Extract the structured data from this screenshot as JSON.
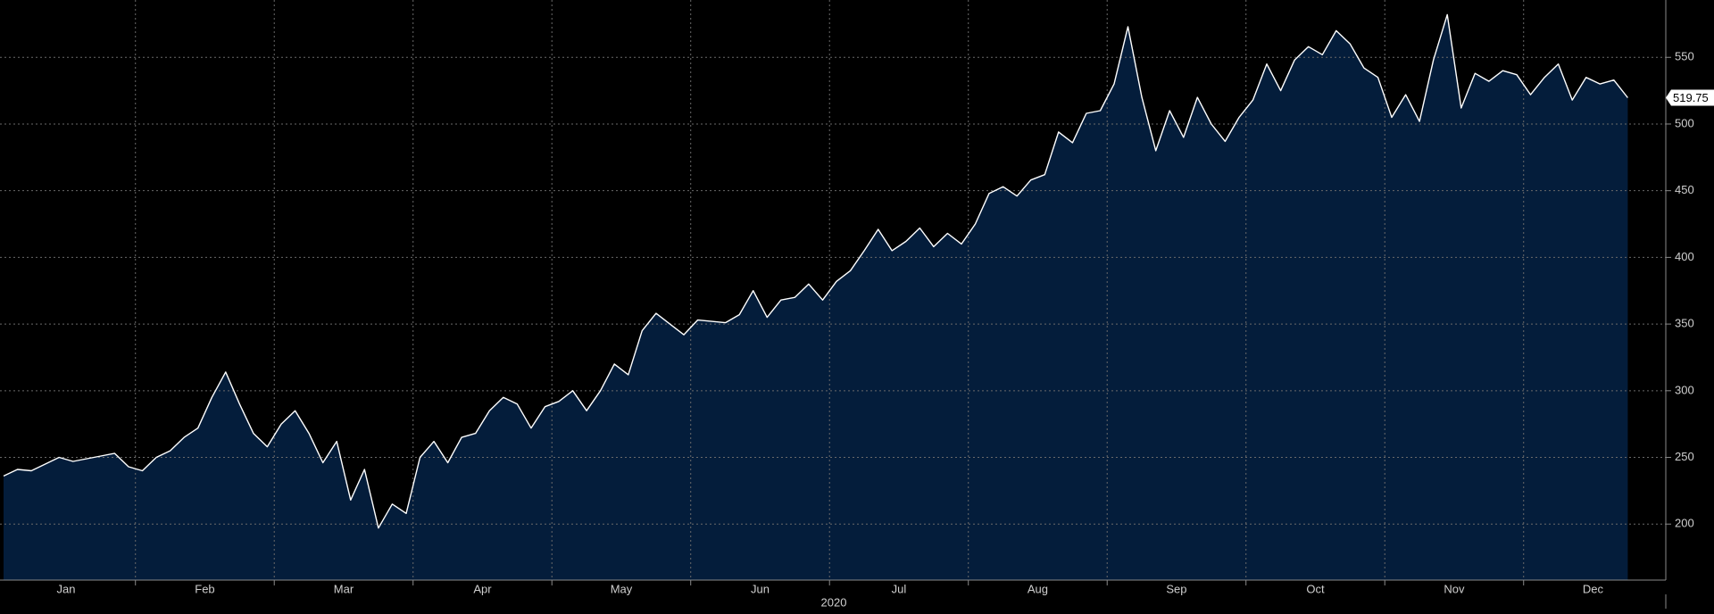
{
  "chart_data": {
    "type": "area",
    "xlabel": "2020",
    "categories": [
      null,
      null,
      null,
      null,
      null,
      "Jan",
      null,
      null,
      null,
      null,
      null,
      null,
      null,
      null,
      null,
      "Feb",
      null,
      null,
      null,
      null,
      null,
      null,
      null,
      null,
      null,
      "Mar",
      null,
      null,
      null,
      null,
      null,
      null,
      null,
      null,
      null,
      "Apr",
      null,
      null,
      null,
      null,
      null,
      null,
      null,
      null,
      null,
      "May",
      null,
      null,
      null,
      null,
      null,
      null,
      null,
      null,
      null,
      "Jun",
      null,
      null,
      null,
      null,
      null,
      null,
      null,
      null,
      null,
      "Jul",
      null,
      null,
      null,
      null,
      null,
      null,
      null,
      null,
      null,
      "Aug",
      null,
      null,
      null,
      null,
      null,
      null,
      null,
      null,
      null,
      "Sep",
      null,
      null,
      null,
      null,
      null,
      null,
      null,
      null,
      null,
      "Oct",
      null,
      null,
      null,
      null,
      null,
      null,
      null,
      null,
      null,
      "Nov",
      null,
      null,
      null,
      null,
      null,
      null,
      null,
      null,
      null,
      "Dec",
      null,
      null
    ],
    "values": [
      236,
      241,
      240,
      245,
      250,
      247,
      249,
      251,
      253,
      243,
      240,
      250,
      255,
      265,
      272,
      295,
      314,
      290,
      268,
      258,
      275,
      285,
      268,
      246,
      262,
      218,
      241,
      197,
      215,
      208,
      250,
      262,
      246,
      265,
      268,
      285,
      295,
      290,
      272,
      288,
      292,
      300,
      285,
      300,
      320,
      312,
      345,
      358,
      350,
      342,
      353,
      352,
      351,
      357,
      375,
      355,
      368,
      370,
      380,
      368,
      382,
      390,
      405,
      421,
      405,
      412,
      422,
      408,
      418,
      410,
      425,
      448,
      453,
      446,
      458,
      462,
      494,
      486,
      508,
      510,
      530,
      573,
      520,
      480,
      510,
      490,
      520,
      500,
      487,
      505,
      518,
      545,
      525,
      548,
      558,
      552,
      570,
      560,
      542,
      535,
      505,
      522,
      502,
      548,
      582,
      512,
      538,
      532,
      540,
      537,
      522,
      535,
      545,
      518,
      535,
      530,
      533,
      519.75
    ],
    "color": "#041d3b",
    "line_color": "#ffffff",
    "ylim": [
      158,
      593
    ],
    "yticks": [
      200,
      250,
      300,
      350,
      400,
      450,
      500,
      550
    ],
    "grid": true
  }
}
